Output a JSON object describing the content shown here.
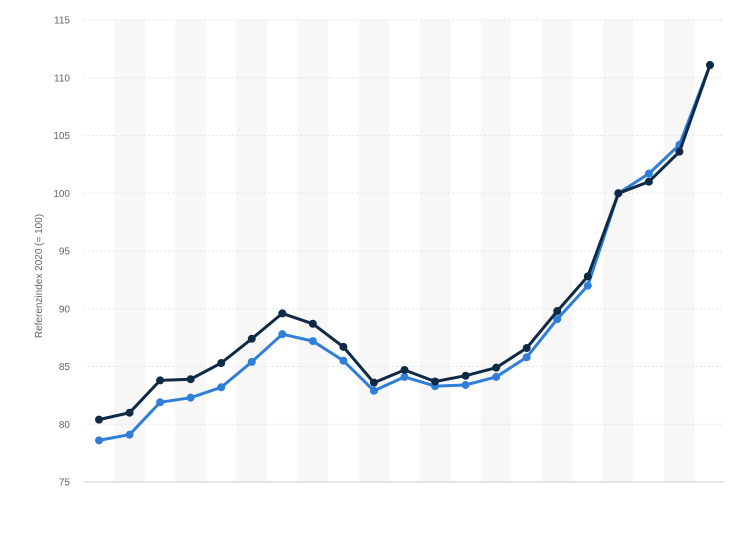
{
  "chart_data": {
    "type": "line",
    "title": "",
    "xlabel": "",
    "ylabel": "Referenzindex 2020 (= 100)",
    "ylim": [
      75,
      115
    ],
    "yticks": [
      75,
      80,
      85,
      90,
      95,
      100,
      105,
      110,
      115
    ],
    "x_count": 21,
    "grid": true,
    "legend": "none",
    "series": [
      {
        "color": "#0f2a44",
        "values": [
          80.4,
          81.0,
          83.8,
          83.9,
          85.3,
          87.4,
          89.6,
          88.7,
          86.7,
          83.6,
          84.7,
          83.7,
          84.2,
          84.9,
          86.6,
          89.8,
          92.8,
          100.0,
          101.0,
          103.6,
          111.1
        ]
      },
      {
        "color": "#2f7ed8",
        "values": [
          78.6,
          79.1,
          81.9,
          82.3,
          83.2,
          85.4,
          87.8,
          87.2,
          85.5,
          82.9,
          84.1,
          83.3,
          83.4,
          84.1,
          85.8,
          89.1,
          92.0,
          100.0,
          101.7,
          104.2,
          111.1
        ]
      }
    ]
  }
}
